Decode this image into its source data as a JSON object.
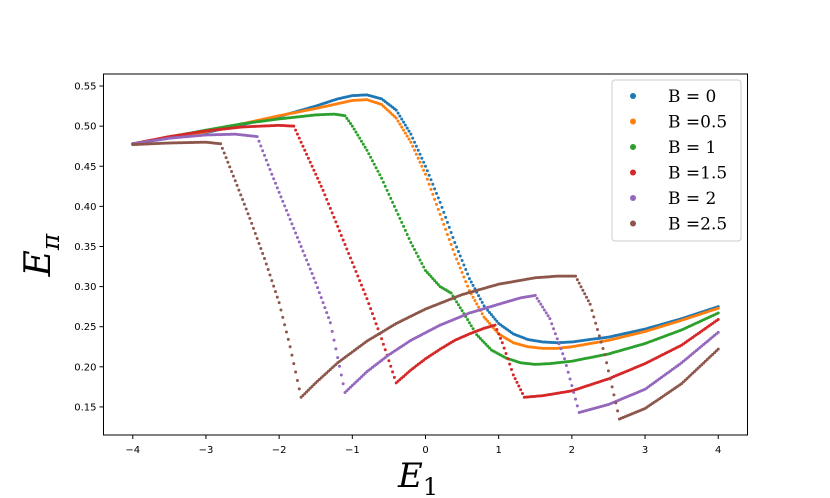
{
  "chart_data": {
    "type": "scatter",
    "xlabel": "E",
    "xlabel_sub": "1",
    "ylabel": "E",
    "ylabel_sub": "π",
    "xlim": [
      -4.4,
      4.4
    ],
    "ylim": [
      0.115,
      0.565
    ],
    "x_ticks": [
      -4,
      -3,
      -2,
      -1,
      0,
      1,
      2,
      3,
      4
    ],
    "x_tick_labels": [
      "−4",
      "−3",
      "−2",
      "−1",
      "0",
      "1",
      "2",
      "3",
      "4"
    ],
    "y_ticks": [
      0.15,
      0.2,
      0.25,
      0.3,
      0.35,
      0.4,
      0.45,
      0.5,
      0.55
    ],
    "y_tick_labels": [
      "0.15",
      "0.20",
      "0.25",
      "0.30",
      "0.35",
      "0.40",
      "0.45",
      "0.50",
      "0.55"
    ],
    "grid": false,
    "legend_position": "top-right",
    "series": [
      {
        "name": "B = 0",
        "color": "#1f77b4",
        "points": [
          [
            -4,
            0.478
          ],
          [
            -3,
            0.492
          ],
          [
            -2.5,
            0.502
          ],
          [
            -2,
            0.512
          ],
          [
            -1.5,
            0.525
          ],
          [
            -1.2,
            0.534
          ],
          [
            -1,
            0.538
          ],
          [
            -0.8,
            0.539
          ],
          [
            -0.6,
            0.534
          ],
          [
            -0.4,
            0.52
          ],
          [
            -0.2,
            0.49
          ],
          [
            0,
            0.45
          ],
          [
            0.2,
            0.405
          ],
          [
            0.4,
            0.355
          ],
          [
            0.6,
            0.31
          ],
          [
            0.8,
            0.276
          ],
          [
            1,
            0.254
          ],
          [
            1.2,
            0.241
          ],
          [
            1.4,
            0.234
          ],
          [
            1.6,
            0.231
          ],
          [
            1.8,
            0.23
          ],
          [
            2,
            0.231
          ],
          [
            2.5,
            0.237
          ],
          [
            3,
            0.247
          ],
          [
            3.5,
            0.26
          ],
          [
            4,
            0.275
          ]
        ]
      },
      {
        "name": "B =0.5",
        "color": "#ff7f0e",
        "points": [
          [
            -4,
            0.478
          ],
          [
            -3,
            0.493
          ],
          [
            -2.5,
            0.503
          ],
          [
            -2,
            0.513
          ],
          [
            -1.5,
            0.522
          ],
          [
            -1.2,
            0.528
          ],
          [
            -1,
            0.532
          ],
          [
            -0.8,
            0.533
          ],
          [
            -0.6,
            0.527
          ],
          [
            -0.4,
            0.51
          ],
          [
            -0.2,
            0.48
          ],
          [
            0,
            0.44
          ],
          [
            0.2,
            0.39
          ],
          [
            0.4,
            0.34
          ],
          [
            0.6,
            0.295
          ],
          [
            0.8,
            0.262
          ],
          [
            1,
            0.241
          ],
          [
            1.2,
            0.23
          ],
          [
            1.4,
            0.225
          ],
          [
            1.6,
            0.223
          ],
          [
            1.8,
            0.223
          ],
          [
            2,
            0.225
          ],
          [
            2.5,
            0.233
          ],
          [
            3,
            0.244
          ],
          [
            3.5,
            0.258
          ],
          [
            4,
            0.273
          ]
        ]
      },
      {
        "name": "B = 1",
        "color": "#2ca02c",
        "points": [
          [
            -4,
            0.478
          ],
          [
            -3,
            0.495
          ],
          [
            -2.5,
            0.503
          ],
          [
            -2,
            0.509
          ],
          [
            -1.5,
            0.514
          ],
          [
            -1.25,
            0.515
          ],
          [
            -1.1,
            0.513
          ],
          [
            -1,
            0.5
          ],
          [
            -0.8,
            0.47
          ],
          [
            -0.6,
            0.435
          ],
          [
            -0.4,
            0.395
          ],
          [
            -0.2,
            0.355
          ],
          [
            0,
            0.32
          ],
          [
            0.2,
            0.3
          ],
          [
            0.35,
            0.292
          ],
          [
            0.5,
            0.27
          ],
          [
            0.7,
            0.24
          ],
          [
            0.9,
            0.221
          ],
          [
            1.1,
            0.211
          ],
          [
            1.3,
            0.205
          ],
          [
            1.5,
            0.203
          ],
          [
            1.7,
            0.204
          ],
          [
            2,
            0.207
          ],
          [
            2.5,
            0.216
          ],
          [
            3,
            0.229
          ],
          [
            3.5,
            0.246
          ],
          [
            4,
            0.267
          ]
        ]
      },
      {
        "name": "B =1.5",
        "color": "#d62728",
        "points": [
          [
            -4,
            0.478
          ],
          [
            -3.5,
            0.487
          ],
          [
            -3,
            0.494
          ],
          [
            -2.5,
            0.499
          ],
          [
            -2,
            0.501
          ],
          [
            -1.8,
            0.5
          ],
          [
            -1.6,
            0.46
          ],
          [
            -1.4,
            0.42
          ],
          [
            -1.2,
            0.375
          ],
          [
            -1,
            0.33
          ],
          [
            -0.8,
            0.285
          ],
          [
            -0.6,
            0.235
          ],
          [
            -0.4,
            0.18
          ],
          [
            -0.2,
            0.196
          ],
          [
            0,
            0.21
          ],
          [
            0.2,
            0.222
          ],
          [
            0.4,
            0.233
          ],
          [
            0.6,
            0.241
          ],
          [
            0.8,
            0.248
          ],
          [
            0.95,
            0.252
          ],
          [
            1.05,
            0.23
          ],
          [
            1.2,
            0.19
          ],
          [
            1.35,
            0.162
          ],
          [
            1.6,
            0.164
          ],
          [
            2,
            0.17
          ],
          [
            2.5,
            0.185
          ],
          [
            3,
            0.204
          ],
          [
            3.5,
            0.227
          ],
          [
            4,
            0.259
          ]
        ]
      },
      {
        "name": "B = 2",
        "color": "#9467bd",
        "points": [
          [
            -4,
            0.478
          ],
          [
            -3.5,
            0.485
          ],
          [
            -3,
            0.489
          ],
          [
            -2.6,
            0.49
          ],
          [
            -2.3,
            0.487
          ],
          [
            -2.1,
            0.44
          ],
          [
            -1.9,
            0.395
          ],
          [
            -1.7,
            0.35
          ],
          [
            -1.5,
            0.305
          ],
          [
            -1.3,
            0.255
          ],
          [
            -1.1,
            0.168
          ],
          [
            -0.8,
            0.194
          ],
          [
            -0.5,
            0.215
          ],
          [
            -0.2,
            0.233
          ],
          [
            0.2,
            0.252
          ],
          [
            0.6,
            0.267
          ],
          [
            1,
            0.278
          ],
          [
            1.3,
            0.286
          ],
          [
            1.5,
            0.289
          ],
          [
            1.7,
            0.26
          ],
          [
            1.9,
            0.21
          ],
          [
            2.1,
            0.143
          ],
          [
            2.5,
            0.153
          ],
          [
            3,
            0.172
          ],
          [
            3.5,
            0.205
          ],
          [
            4,
            0.243
          ]
        ]
      },
      {
        "name": "B =2.5",
        "color": "#8c564b",
        "points": [
          [
            -4,
            0.477
          ],
          [
            -3.5,
            0.479
          ],
          [
            -3,
            0.48
          ],
          [
            -2.8,
            0.478
          ],
          [
            -2.6,
            0.432
          ],
          [
            -2.4,
            0.385
          ],
          [
            -2.2,
            0.335
          ],
          [
            -2,
            0.28
          ],
          [
            -1.85,
            0.225
          ],
          [
            -1.7,
            0.162
          ],
          [
            -1.5,
            0.18
          ],
          [
            -1.2,
            0.205
          ],
          [
            -0.8,
            0.232
          ],
          [
            -0.4,
            0.254
          ],
          [
            0,
            0.272
          ],
          [
            0.5,
            0.29
          ],
          [
            1,
            0.303
          ],
          [
            1.5,
            0.311
          ],
          [
            1.8,
            0.313
          ],
          [
            2.05,
            0.313
          ],
          [
            2.25,
            0.278
          ],
          [
            2.45,
            0.215
          ],
          [
            2.65,
            0.135
          ],
          [
            3,
            0.148
          ],
          [
            3.5,
            0.179
          ],
          [
            4,
            0.222
          ]
        ]
      }
    ]
  }
}
